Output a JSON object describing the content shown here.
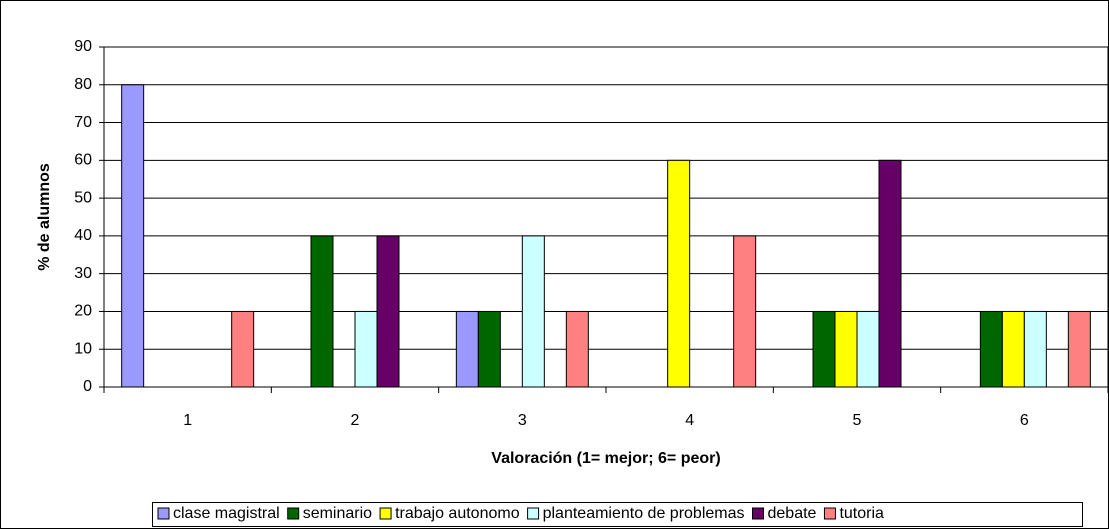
{
  "chart_data": {
    "type": "bar",
    "ylabel": "% de alumnos",
    "xlabel": "Valoración (1= mejor; 6= peor)",
    "categories": [
      "1",
      "2",
      "3",
      "4",
      "5",
      "6"
    ],
    "series": [
      {
        "name": "clase magistral",
        "color": "#9999ff",
        "values": [
          80,
          0,
          20,
          0,
          0,
          0
        ]
      },
      {
        "name": "seminario",
        "color": "#006600",
        "values": [
          0,
          40,
          20,
          0,
          20,
          20
        ]
      },
      {
        "name": "trabajo autonomo",
        "color": "#ffff00",
        "values": [
          0,
          0,
          0,
          60,
          20,
          20
        ]
      },
      {
        "name": "planteamiento de problemas",
        "color": "#ccffff",
        "values": [
          0,
          20,
          40,
          0,
          20,
          20
        ]
      },
      {
        "name": "debate",
        "color": "#660066",
        "values": [
          0,
          40,
          0,
          0,
          60,
          0
        ]
      },
      {
        "name": "tutoria",
        "color": "#ff8080",
        "values": [
          20,
          0,
          20,
          40,
          0,
          20
        ]
      }
    ],
    "ylim": [
      0,
      90
    ],
    "yticks": [
      0,
      10,
      20,
      30,
      40,
      50,
      60,
      70,
      80,
      90
    ],
    "grid": true,
    "legend": "bottom"
  }
}
